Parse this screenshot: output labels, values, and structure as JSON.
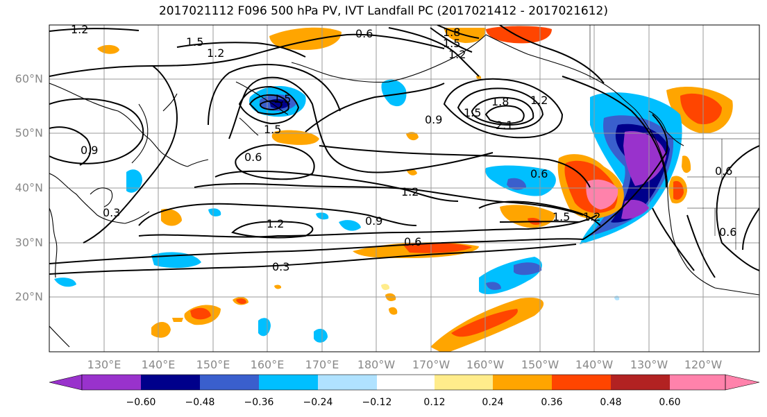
{
  "title": "2017021112 F096 500 hPa PV, IVT Landfall PC (2017021412 - 2017021612)",
  "lat_labels": [
    "60°N",
    "50°N",
    "40°N",
    "30°N",
    "20°N"
  ],
  "lon_labels": [
    "130°E",
    "140°E",
    "150°E",
    "160°E",
    "170°E",
    "180°W",
    "170°W",
    "160°W",
    "150°W",
    "140°W",
    "130°W",
    "120°W"
  ],
  "contour_labels": [
    "1.2",
    "1.5",
    "1.2",
    "0.6",
    "1.8",
    "1.5",
    "1.2",
    "0.9",
    "1.5",
    "0.6",
    "1.8",
    "2.1",
    "1.5",
    "1.2",
    "0.9",
    "0.6",
    "0.6",
    "1.2",
    "0.9",
    "1.2",
    "0.6",
    "0.3",
    "1.5",
    "1.2",
    "0.3",
    "0.6",
    "1.5"
  ],
  "colorbar": {
    "ticks": [
      "−0.60",
      "−0.48",
      "−0.36",
      "−0.24",
      "−0.12",
      "0.12",
      "0.24",
      "0.36",
      "0.48",
      "0.60"
    ],
    "colors": [
      "#9932CC",
      "#00008B",
      "#3A5FCD",
      "#00BFFF",
      "#B0E2FF",
      "#FFFFFF",
      "#FFEC8B",
      "#FFA500",
      "#FF4500",
      "#B22222",
      "#FF82AB"
    ]
  }
}
